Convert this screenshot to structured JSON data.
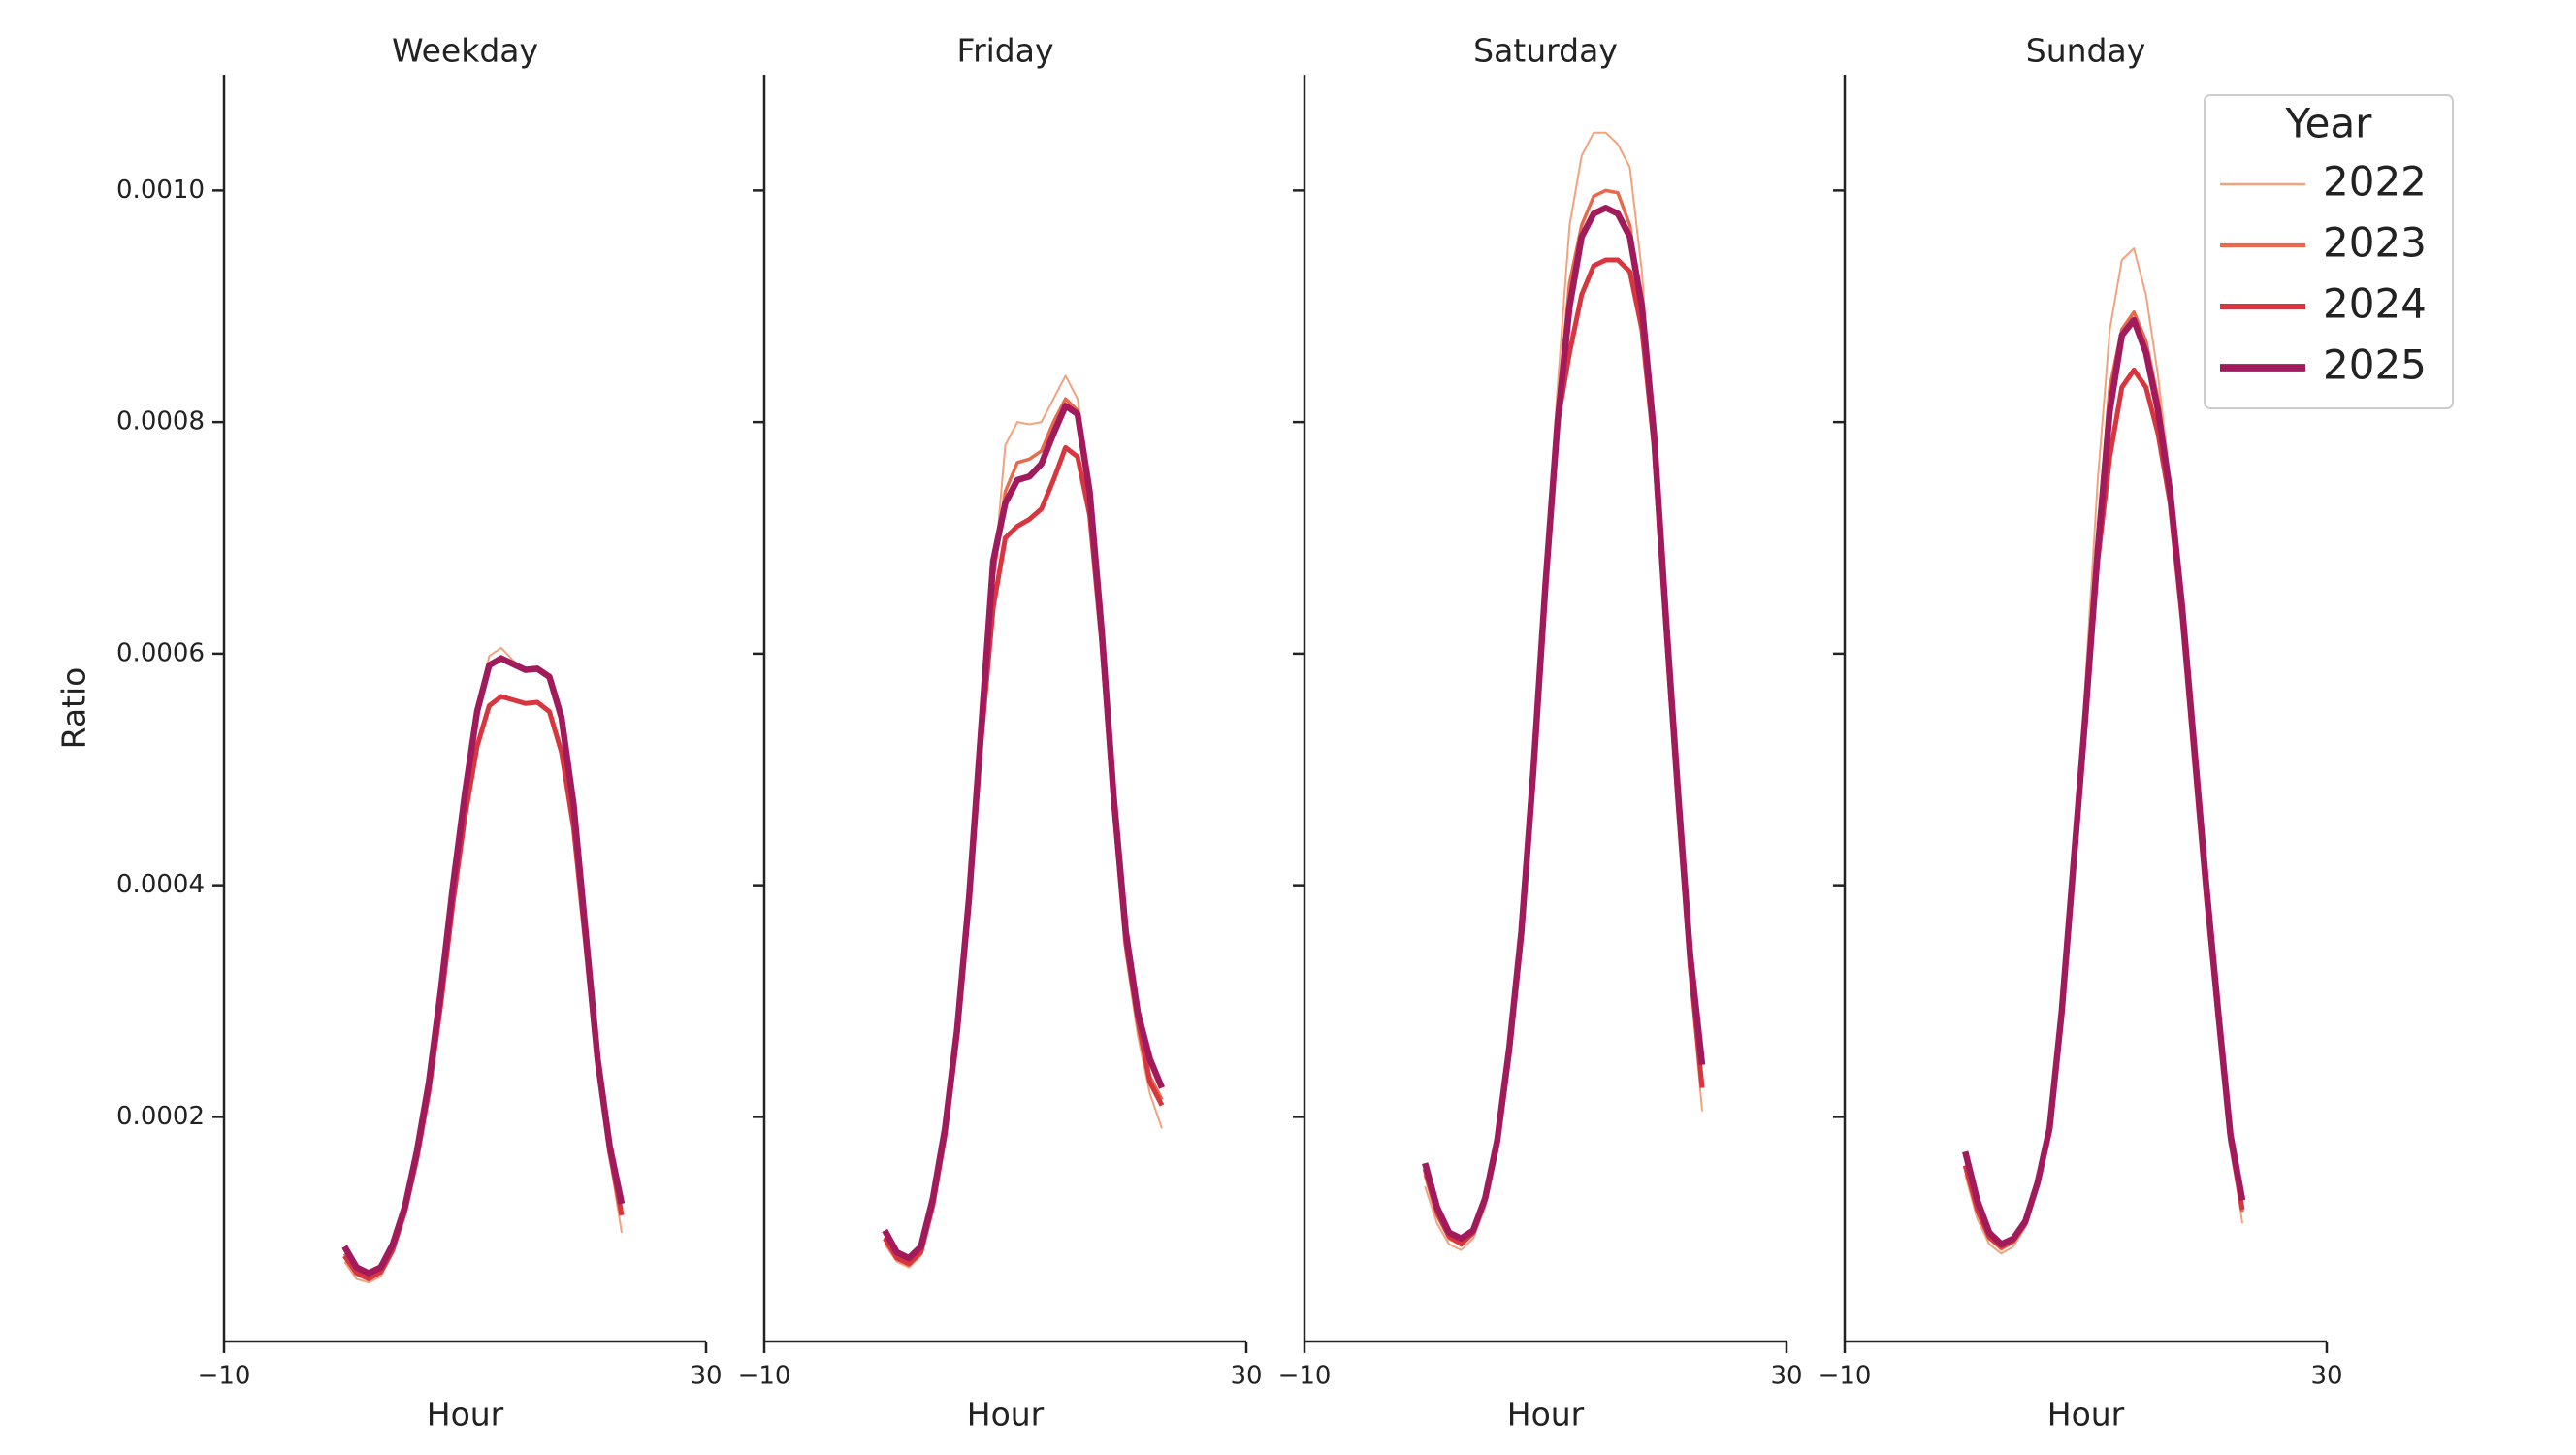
{
  "chart_data": [
    {
      "type": "line",
      "title": "Weekday",
      "xlabel": "Hour",
      "ylabel": "Ratio",
      "x": [
        0,
        1,
        2,
        3,
        4,
        5,
        6,
        7,
        8,
        9,
        10,
        11,
        12,
        13,
        14,
        15,
        16,
        17,
        18,
        19,
        20,
        21,
        22,
        23
      ],
      "xlim": [
        -10,
        30
      ],
      "xticks": [
        {
          "value": -10,
          "label": "−10"
        },
        30
      ],
      "ylim": [
        6e-06,
        0.0011
      ],
      "yticks": [
        0.0002,
        0.0004,
        0.0006,
        0.0008,
        {
          "value": 0.001,
          "label": "0.0010"
        }
      ],
      "series": [
        {
          "name": "2022",
          "color": "#f3a27e",
          "values": [
            7.5e-05,
            6e-05,
            5.7e-05,
            6.2e-05,
            8.2e-05,
            0.000115,
            0.000162,
            0.000222,
            0.000302,
            0.000395,
            0.000478,
            0.00055,
            0.000598,
            0.000605,
            0.000594,
            0.000586,
            0.000587,
            0.00058,
            0.000542,
            0.000468,
            0.000355,
            0.000245,
            0.000165,
            0.0001
          ]
        },
        {
          "name": "2023",
          "color": "#e9694c",
          "values": [
            8.2e-05,
            6.6e-05,
            6.2e-05,
            6.7e-05,
            8.7e-05,
            0.00012,
            0.000168,
            0.000228,
            0.000308,
            0.000398,
            0.000479,
            0.00055,
            0.000591,
            0.000597,
            0.000591,
            0.000586,
            0.000587,
            0.00058,
            0.000544,
            0.000469,
            0.000358,
            0.000248,
            0.000172,
            0.00012
          ]
        },
        {
          "name": "2024",
          "color": "#d8353f",
          "values": [
            8e-05,
            6.5e-05,
            6e-05,
            6.6e-05,
            8.5e-05,
            0.000118,
            0.000164,
            0.000222,
            0.000298,
            0.000385,
            0.00046,
            0.00052,
            0.000555,
            0.000563,
            0.00056,
            0.000557,
            0.000558,
            0.00055,
            0.000515,
            0.00045,
            0.00035,
            0.000245,
            0.00017,
            0.000115
          ]
        },
        {
          "name": "2025",
          "color": "#a11a5b",
          "values": [
            8.8e-05,
            7e-05,
            6.5e-05,
            7e-05,
            9e-05,
            0.000122,
            0.00017,
            0.00023,
            0.00031,
            0.0004,
            0.00048,
            0.00055,
            0.00059,
            0.000596,
            0.000591,
            0.000586,
            0.000587,
            0.00058,
            0.000545,
            0.00047,
            0.00036,
            0.00025,
            0.000175,
            0.000125
          ]
        }
      ]
    },
    {
      "type": "line",
      "title": "Friday",
      "xlabel": "Hour",
      "x": [
        0,
        1,
        2,
        3,
        4,
        5,
        6,
        7,
        8,
        9,
        10,
        11,
        12,
        13,
        14,
        15,
        16,
        17,
        18,
        19,
        20,
        21,
        22,
        23
      ],
      "xlim": [
        -10,
        30
      ],
      "xticks": [
        {
          "value": -10,
          "label": "−10"
        },
        30
      ],
      "ylim": [
        6e-06,
        0.0011
      ],
      "yticks": [
        0.0002,
        0.0004,
        0.0006,
        0.0008,
        {
          "value": 0.001,
          "label": "0.0010"
        }
      ],
      "series": [
        {
          "name": "2022",
          "color": "#f3a27e",
          "values": [
            9e-05,
            7.5e-05,
            7e-05,
            8e-05,
            0.000122,
            0.000182,
            0.000268,
            0.000385,
            0.00053,
            0.00066,
            0.00078,
            0.0008,
            0.000798,
            0.0008,
            0.00082,
            0.00084,
            0.00082,
            0.00074,
            0.00061,
            0.00046,
            0.00034,
            0.00027,
            0.00022,
            0.00019
          ]
        },
        {
          "name": "2023",
          "color": "#e9694c",
          "values": [
            9.6e-05,
            8e-05,
            7.5e-05,
            8.5e-05,
            0.000126,
            0.000186,
            0.000272,
            0.000388,
            0.000532,
            0.000665,
            0.00074,
            0.000765,
            0.000768,
            0.000775,
            0.0008,
            0.00082,
            0.00081,
            0.00074,
            0.00062,
            0.000472,
            0.000352,
            0.000285,
            0.000235,
            0.000215
          ]
        },
        {
          "name": "2024",
          "color": "#d8353f",
          "values": [
            9.5e-05,
            7.8e-05,
            7.3e-05,
            8.3e-05,
            0.000124,
            0.000184,
            0.00027,
            0.000385,
            0.000525,
            0.00064,
            0.0007,
            0.00071,
            0.000716,
            0.000725,
            0.00075,
            0.000778,
            0.00077,
            0.00072,
            0.00061,
            0.00047,
            0.00035,
            0.000283,
            0.00023,
            0.00021
          ]
        },
        {
          "name": "2025",
          "color": "#a11a5b",
          "values": [
            0.000102,
            8.3e-05,
            7.8e-05,
            8.8e-05,
            0.00013,
            0.00019,
            0.000275,
            0.00039,
            0.000535,
            0.00068,
            0.00073,
            0.00075,
            0.000753,
            0.000764,
            0.00079,
            0.000814,
            0.000807,
            0.00074,
            0.00062,
            0.000476,
            0.00036,
            0.00029,
            0.00025,
            0.000225
          ]
        }
      ]
    },
    {
      "type": "line",
      "title": "Saturday",
      "xlabel": "Hour",
      "x": [
        0,
        1,
        2,
        3,
        4,
        5,
        6,
        7,
        8,
        9,
        10,
        11,
        12,
        13,
        14,
        15,
        16,
        17,
        18,
        19,
        20,
        21,
        22,
        23
      ],
      "xlim": [
        -10,
        30
      ],
      "xticks": [
        {
          "value": -10,
          "label": "−10"
        },
        30
      ],
      "ylim": [
        6e-06,
        0.0011
      ],
      "yticks": [
        0.0002,
        0.0004,
        0.0006,
        0.0008,
        {
          "value": 0.001,
          "label": "0.0010"
        }
      ],
      "series": [
        {
          "name": "2022",
          "color": "#f3a27e",
          "values": [
            0.00014,
            0.000108,
            9e-05,
            8.5e-05,
            9.5e-05,
            0.000122,
            0.00017,
            0.00025,
            0.00036,
            0.0005,
            0.00067,
            0.00083,
            0.00097,
            0.00103,
            0.00105,
            0.00105,
            0.00104,
            0.00102,
            0.00093,
            0.00078,
            0.00061,
            0.00046,
            0.00032,
            0.000205
          ]
        },
        {
          "name": "2023",
          "color": "#e9694c",
          "values": [
            0.00015,
            0.000115,
            9.5e-05,
            9e-05,
            0.0001,
            0.000128,
            0.000176,
            0.000256,
            0.000362,
            0.000502,
            0.000665,
            0.00081,
            0.00092,
            0.00097,
            0.000995,
            0.001,
            0.000998,
            0.00097,
            0.00089,
            0.00078,
            0.00062,
            0.000472,
            0.000332,
            0.00023
          ]
        },
        {
          "name": "2024",
          "color": "#d8353f",
          "values": [
            0.000155,
            0.000118,
            9.7e-05,
            9e-05,
            0.0001,
            0.000128,
            0.000176,
            0.000255,
            0.00036,
            0.0005,
            0.00066,
            0.0008,
            0.00086,
            0.00091,
            0.000935,
            0.00094,
            0.00094,
            0.00093,
            0.00088,
            0.00078,
            0.00062,
            0.00047,
            0.00033,
            0.000225
          ]
        },
        {
          "name": "2025",
          "color": "#a11a5b",
          "values": [
            0.00016,
            0.000122,
            0.0001,
            9.5e-05,
            0.000102,
            0.00013,
            0.00018,
            0.00026,
            0.00036,
            0.0005,
            0.00066,
            0.0008,
            0.0009,
            0.00096,
            0.00098,
            0.000985,
            0.00098,
            0.00096,
            0.0009,
            0.00079,
            0.00063,
            0.00048,
            0.00034,
            0.000245
          ]
        }
      ]
    },
    {
      "type": "line",
      "title": "Sunday",
      "xlabel": "Hour",
      "legend_title": "Year",
      "legend": "upper right",
      "x": [
        0,
        1,
        2,
        3,
        4,
        5,
        6,
        7,
        8,
        9,
        10,
        11,
        12,
        13,
        14,
        15,
        16,
        17,
        18,
        19,
        20,
        21,
        22,
        23
      ],
      "xlim": [
        -10,
        30
      ],
      "xticks": [
        {
          "value": -10,
          "label": "−10"
        },
        30
      ],
      "ylim": [
        6e-06,
        0.0011
      ],
      "yticks": [
        0.0002,
        0.0004,
        0.0006,
        0.0008,
        {
          "value": 0.001,
          "label": "0.0010"
        }
      ],
      "series": [
        {
          "name": "2022",
          "color": "#f3a27e",
          "values": [
            0.00015,
            0.000112,
            9e-05,
            8.2e-05,
            8.8e-05,
            0.000105,
            0.00014,
            0.000188,
            0.000288,
            0.00042,
            0.00058,
            0.00075,
            0.00088,
            0.00094,
            0.00095,
            0.00091,
            0.00084,
            0.00075,
            0.00064,
            0.00052,
            0.0004,
            0.00029,
            0.00018,
            0.000108
          ]
        },
        {
          "name": "2023",
          "color": "#e9694c",
          "values": [
            0.000158,
            0.000118,
            9.5e-05,
            8.6e-05,
            9.2e-05,
            0.000108,
            0.000142,
            0.00019,
            0.00029,
            0.00042,
            0.00056,
            0.0007,
            0.00083,
            0.00088,
            0.000895,
            0.00087,
            0.00082,
            0.00074,
            0.00064,
            0.00052,
            0.0004,
            0.00029,
            0.000182,
            0.000118
          ]
        },
        {
          "name": "2024",
          "color": "#d8353f",
          "values": [
            0.000158,
            0.00012,
            9.6e-05,
            8.8e-05,
            9.3e-05,
            0.000108,
            0.000142,
            0.00019,
            0.000288,
            0.000418,
            0.00055,
            0.00068,
            0.00077,
            0.00083,
            0.000845,
            0.00083,
            0.00079,
            0.00073,
            0.00063,
            0.00051,
            0.00039,
            0.000285,
            0.00018,
            0.00012
          ]
        },
        {
          "name": "2025",
          "color": "#a11a5b",
          "values": [
            0.00017,
            0.000128,
            0.0001,
            9e-05,
            9.5e-05,
            0.00011,
            0.000143,
            0.00019,
            0.00029,
            0.00042,
            0.00055,
            0.00069,
            0.00081,
            0.000875,
            0.000888,
            0.00086,
            0.00081,
            0.00074,
            0.00064,
            0.00052,
            0.0004,
            0.00029,
            0.000185,
            0.000128
          ]
        }
      ]
    }
  ]
}
